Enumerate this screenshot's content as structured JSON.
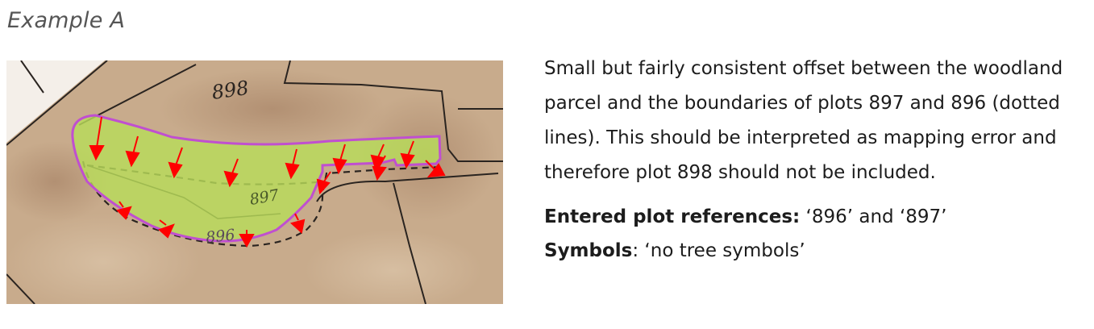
{
  "heading": "Example A",
  "map": {
    "plot_labels": {
      "p898": "898",
      "p897": "897",
      "p896": "896"
    },
    "colors": {
      "paper": "#c9ad8e",
      "parcel_fill": "#b8dc5a",
      "parcel_outline": "#c04fd0",
      "arrow": "#ff0000",
      "ink": "#2a2420"
    }
  },
  "description": "Small but fairly consistent offset between the woodland parcel and the boundaries of plots 897 and 896 (dotted lines). This should be interpreted as mapping error and therefore plot 898 should not be included.",
  "refs": {
    "entered_label": "Entered plot references:",
    "entered_value": " ‘896’ and ‘897’",
    "symbols_label": "Symbols",
    "symbols_value": ": ‘no tree symbols’"
  }
}
